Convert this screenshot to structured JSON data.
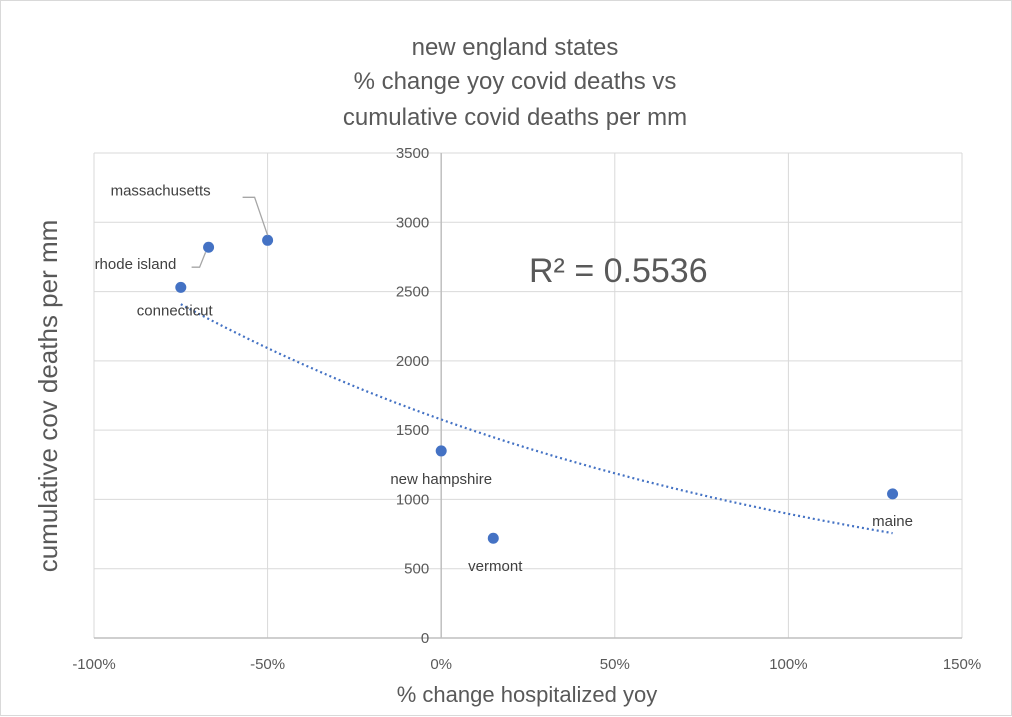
{
  "chart_data": {
    "type": "scatter",
    "title_lines": [
      "new england states",
      "% change yoy covid deaths vs",
      "cumulative covid deaths per mm"
    ],
    "xlabel": "% change hospitalized yoy",
    "ylabel": "cumulative cov deaths per mm",
    "xlim": [
      -1.0,
      1.5
    ],
    "ylim": [
      0,
      3500
    ],
    "x_ticks": [
      -1.0,
      -0.5,
      0,
      0.5,
      1.0,
      1.5
    ],
    "x_tick_labels": [
      "-100%",
      "-50%",
      "0%",
      "50%",
      "100%",
      "150%"
    ],
    "y_ticks": [
      0,
      500,
      1000,
      1500,
      2000,
      2500,
      3000,
      3500
    ],
    "y_tick_labels": [
      "0",
      "500",
      "1000",
      "1500",
      "2000",
      "2500",
      "3000",
      "3500"
    ],
    "grid": true,
    "point_color": "#4472c4",
    "trendline_color": "#4472c4",
    "r_squared_label": "R² = 0.5536",
    "points": [
      {
        "label": "massachusetts",
        "x": -0.5,
        "y": 2870
      },
      {
        "label": "rhode island",
        "x": -0.67,
        "y": 2820
      },
      {
        "label": "connecticut",
        "x": -0.75,
        "y": 2530
      },
      {
        "label": "new hampshire",
        "x": 0.0,
        "y": 1350
      },
      {
        "label": "vermont",
        "x": 0.15,
        "y": 720
      },
      {
        "label": "maine",
        "x": 1.3,
        "y": 1040
      }
    ],
    "trendline": {
      "type": "exponential",
      "x_range": [
        -0.75,
        1.3
      ],
      "a": 1577,
      "b": -0.565
    }
  }
}
